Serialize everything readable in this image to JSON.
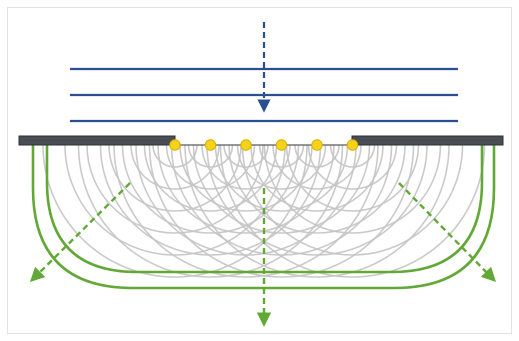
{
  "diagram": {
    "kind": "huygens-single-slit-diffraction",
    "colors": {
      "incident_wavefront": "#2b5091",
      "barrier": "#4a4e54",
      "barrier_edge": "#2c2f33",
      "huygens_source": "#f6d21a",
      "huygens_source_stroke": "#d7b000",
      "secondary_wavelet": "#c4c4c4",
      "diffracted_wavefront": "#62a837",
      "propagation_arrow_incident": "#2b5091",
      "propagation_arrow_diffracted": "#62a837"
    },
    "incident_wavefront_count": 3,
    "huygens_source_count": 6,
    "diffracted_wavefront_count": 2,
    "diffracted_arrow_directions": [
      "down-left",
      "down",
      "down-right"
    ],
    "icons": [
      "down-arrow-icon",
      "down-left-arrow-icon",
      "down-right-arrow-icon"
    ]
  }
}
